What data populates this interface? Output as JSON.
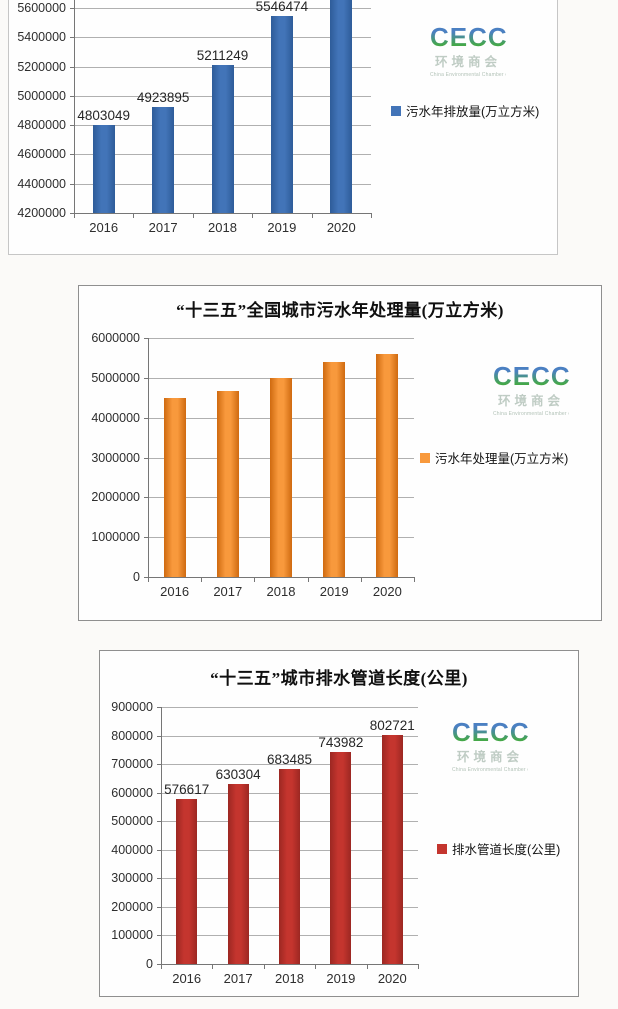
{
  "logo": {
    "text": "CECC",
    "chinese": "环境商会",
    "tagline": "China Environmental Chamber of Commerce"
  },
  "chart_data": [
    {
      "type": "bar",
      "title": "",
      "legend": "污水年排放量(万立方米)",
      "categories": [
        "2016",
        "2017",
        "2018",
        "2019",
        "2020"
      ],
      "values": [
        4803049,
        4923895,
        5211249,
        5546474,
        null
      ],
      "color": "#4274b8",
      "color_dark": "#2e5c99",
      "ylim": [
        4200000,
        5600000
      ],
      "ytick_interval": 200000,
      "data_labels_visible": true,
      "grid": true,
      "legend_position": "right",
      "note": "Chart clipped by top edge of image: title and y-ticks above 5600000 not visible; 2020 bar extends past the visible top and its value label is cut off"
    },
    {
      "type": "bar",
      "title": "“十三五”全国城市污水年处理量(万立方米)",
      "legend": "污水年处理量(万立方米)",
      "categories": [
        "2016",
        "2017",
        "2018",
        "2019",
        "2020"
      ],
      "values": [
        4500000,
        4670000,
        5000000,
        5390000,
        5590000
      ],
      "values_estimated": true,
      "color": "#f8993c",
      "color_dark": "#cf6a10",
      "ylim": [
        0,
        6000000
      ],
      "ytick_interval": 1000000,
      "data_labels_visible": false,
      "grid": true,
      "legend_position": "right"
    },
    {
      "type": "bar",
      "title": "“十三五”城市排水管道长度(公里)",
      "legend": "排水管道长度(公里)",
      "categories": [
        "2016",
        "2017",
        "2018",
        "2019",
        "2020"
      ],
      "values": [
        576617,
        630304,
        683485,
        743982,
        802721
      ],
      "color": "#c4352e",
      "color_dark": "#9c2722",
      "ylim": [
        0,
        900000
      ],
      "ytick_interval": 100000,
      "data_labels_visible": true,
      "grid": true,
      "legend_position": "right"
    }
  ]
}
